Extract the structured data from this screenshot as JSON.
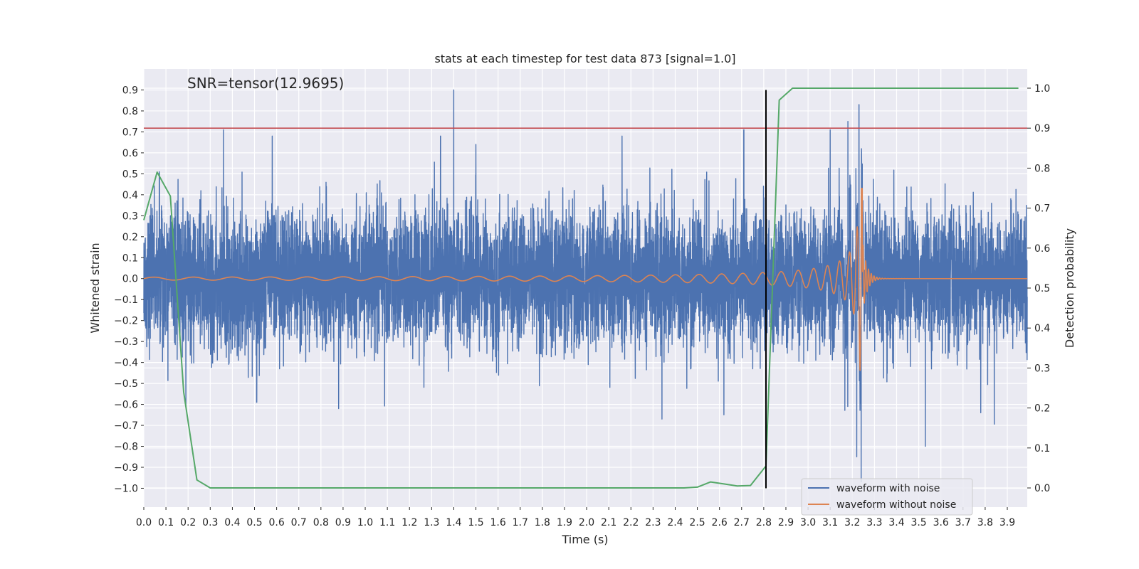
{
  "chart_data": {
    "type": "line",
    "title": "stats at each timestep for test data 873 [signal=1.0]",
    "xlabel": "Time (s)",
    "ylabel": "Whitened strain",
    "ylabel_right": "Detection probability",
    "annotation": "SNR=tensor(12.9695)",
    "xlim": [
      0.0,
      3.99
    ],
    "ylim": [
      -1.09,
      1.0
    ],
    "ylim_right": [
      -0.048,
      1.048
    ],
    "x_ticks": [
      0.0,
      0.1,
      0.2,
      0.3,
      0.4,
      0.5,
      0.6,
      0.7,
      0.8,
      0.9,
      1.0,
      1.1,
      1.2,
      1.3,
      1.4,
      1.5,
      1.6,
      1.7,
      1.8,
      1.9,
      2.0,
      2.1,
      2.2,
      2.3,
      2.4,
      2.5,
      2.6,
      2.7,
      2.8,
      2.9,
      3.0,
      3.1,
      3.2,
      3.3,
      3.4,
      3.5,
      3.6,
      3.7,
      3.8,
      3.9
    ],
    "x_tick_labels": [
      "0.0",
      "0.1",
      "0.2",
      "0.3",
      "0.4",
      "0.5",
      "0.6",
      "0.7",
      "0.8",
      "0.9",
      "1.0",
      "1.1",
      "1.2",
      "1.3",
      "1.4",
      "1.5",
      "1.6",
      "1.7",
      "1.8",
      "1.9",
      "2.0",
      "2.1",
      "2.2",
      "2.3",
      "2.4",
      "2.5",
      "2.6",
      "2.7",
      "2.8",
      "2.9",
      "3.0",
      "3.1",
      "3.2",
      "3.3",
      "3.4",
      "3.5",
      "3.6",
      "3.7",
      "3.8",
      "3.9"
    ],
    "y_ticks": [
      0.9,
      0.8,
      0.7,
      0.6,
      0.5,
      0.4,
      0.3,
      0.2,
      0.1,
      0.0,
      -0.1,
      -0.2,
      -0.3,
      -0.4,
      -0.5,
      -0.6,
      -0.7,
      -0.8,
      -0.9,
      -1.0
    ],
    "y_tick_labels": [
      "0.9",
      "0.8",
      "0.7",
      "0.6",
      "0.5",
      "0.4",
      "0.3",
      "0.2",
      "0.1",
      "0.0",
      "−0.1",
      "−0.2",
      "−0.3",
      "−0.4",
      "−0.5",
      "−0.6",
      "−0.7",
      "−0.8",
      "−0.9",
      "−1.0"
    ],
    "y_right_ticks": [
      1.0,
      0.9,
      0.8,
      0.7,
      0.6,
      0.5,
      0.4,
      0.3,
      0.2,
      0.1,
      0.0
    ],
    "y_right_tick_labels": [
      "1.0",
      "0.9",
      "0.8",
      "0.7",
      "0.6",
      "0.5",
      "0.4",
      "0.3",
      "0.2",
      "0.1",
      "0.0"
    ],
    "grid": true,
    "legend_position": "lower-right",
    "threshold": {
      "axis": "right",
      "value": 0.9,
      "color": "#c44e52"
    },
    "vertical_marker": {
      "x": 2.81,
      "y_range": [
        -1.0,
        0.9
      ],
      "color": "#000000"
    },
    "series": [
      {
        "name": "waveform with noise",
        "axis": "left",
        "color": "#4c72b0",
        "kind": "noise",
        "sample_rate_hz": 2048,
        "sigma": 0.16,
        "seed": 873,
        "notable_peaks": [
          {
            "x": 0.07,
            "y": 0.51
          },
          {
            "x": 0.36,
            "y": 0.71
          },
          {
            "x": 0.58,
            "y": 0.68
          },
          {
            "x": 1.34,
            "y": 0.68
          },
          {
            "x": 1.4,
            "y": 0.9
          },
          {
            "x": 1.5,
            "y": 0.64
          },
          {
            "x": 2.16,
            "y": 0.68
          },
          {
            "x": 2.71,
            "y": 0.71
          },
          {
            "x": 3.1,
            "y": 0.71
          },
          {
            "x": 3.18,
            "y": 0.75
          },
          {
            "x": 3.23,
            "y": 0.83
          },
          {
            "x": 0.19,
            "y": -0.61
          },
          {
            "x": 0.51,
            "y": -0.59
          },
          {
            "x": 0.88,
            "y": -0.62
          },
          {
            "x": 2.34,
            "y": -0.67
          },
          {
            "x": 2.62,
            "y": -0.65
          },
          {
            "x": 3.22,
            "y": -0.85
          },
          {
            "x": 3.24,
            "y": -0.97
          },
          {
            "x": 3.53,
            "y": -0.8
          },
          {
            "x": 3.78,
            "y": -0.64
          }
        ]
      },
      {
        "name": "waveform without noise",
        "axis": "left",
        "color": "#dd8452",
        "kind": "chirp",
        "t_merger": 3.245,
        "amplitude_start": 0.007,
        "amplitude_merger": 0.62,
        "frequency_start_hz": 5.5,
        "frequency_merger_hz": 80,
        "ringdown_s": 0.02
      },
      {
        "name": "",
        "axis": "right",
        "color": "#55a868",
        "x": [
          0.0,
          0.06,
          0.12,
          0.18,
          0.24,
          0.3,
          0.36,
          0.42,
          0.48,
          2.4,
          2.44,
          2.5,
          2.56,
          2.62,
          2.68,
          2.74,
          2.81,
          2.87,
          2.93,
          2.98,
          3.95
        ],
        "y": [
          0.67,
          0.79,
          0.73,
          0.24,
          0.02,
          0.0,
          0.0,
          0.0,
          0.0,
          0.0,
          0.0,
          0.002,
          0.015,
          0.01,
          0.005,
          0.006,
          0.055,
          0.97,
          1.0,
          1.0,
          1.0
        ]
      }
    ]
  },
  "legend": {
    "items": [
      {
        "label": "waveform with noise",
        "color": "#4c72b0"
      },
      {
        "label": "waveform without noise",
        "color": "#dd8452"
      }
    ]
  }
}
